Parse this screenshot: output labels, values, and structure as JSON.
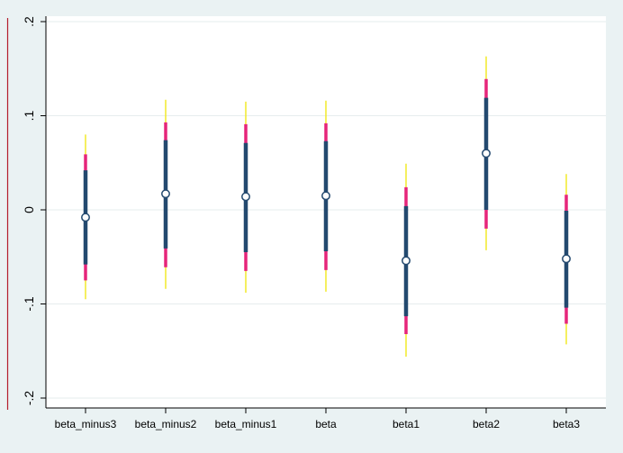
{
  "chart_data": {
    "type": "scatter",
    "subtype": "coefficient-plot-with-confidence-intervals",
    "title": "",
    "xlabel": "",
    "ylabel": "",
    "categories": [
      "beta_minus3",
      "beta_minus2",
      "beta_minus1",
      "beta",
      "beta1",
      "beta2",
      "beta3"
    ],
    "ylim": [
      -0.2,
      0.2
    ],
    "yticks": [
      -0.2,
      -0.1,
      0,
      0.1,
      0.2
    ],
    "ytick_labels": [
      "-.2",
      "-.1",
      "0",
      ".1",
      ".2"
    ],
    "grid": true,
    "legend": "none",
    "series": [
      {
        "point": -0.008,
        "ci_inner": [
          -0.058,
          0.042
        ],
        "ci_mid": [
          -0.075,
          0.059
        ],
        "ci_outer": [
          -0.095,
          0.08
        ]
      },
      {
        "point": 0.017,
        "ci_inner": [
          -0.041,
          0.074
        ],
        "ci_mid": [
          -0.061,
          0.093
        ],
        "ci_outer": [
          -0.084,
          0.117
        ]
      },
      {
        "point": 0.014,
        "ci_inner": [
          -0.045,
          0.071
        ],
        "ci_mid": [
          -0.065,
          0.091
        ],
        "ci_outer": [
          -0.088,
          0.115
        ]
      },
      {
        "point": 0.015,
        "ci_inner": [
          -0.044,
          0.073
        ],
        "ci_mid": [
          -0.064,
          0.092
        ],
        "ci_outer": [
          -0.087,
          0.116
        ]
      },
      {
        "point": -0.054,
        "ci_inner": [
          -0.113,
          0.004
        ],
        "ci_mid": [
          -0.132,
          0.024
        ],
        "ci_outer": [
          -0.156,
          0.049
        ]
      },
      {
        "point": 0.06,
        "ci_inner": [
          0.0,
          0.119
        ],
        "ci_mid": [
          -0.02,
          0.139
        ],
        "ci_outer": [
          -0.043,
          0.163
        ]
      },
      {
        "point": -0.052,
        "ci_inner": [
          -0.104,
          -0.001
        ],
        "ci_mid": [
          -0.121,
          0.016
        ],
        "ci_outer": [
          -0.143,
          0.038
        ]
      }
    ],
    "colors": {
      "background": "#eaf2f3",
      "plot_area": "#ffffff",
      "grid": "#e6ecee",
      "ci_inner": "#23496f",
      "ci_mid": "#e6257a",
      "ci_outer": "#f2ea2a",
      "left_rule": "#b41e2d",
      "marker_fill": "#ffffff",
      "marker_stroke": "#23496f"
    }
  }
}
